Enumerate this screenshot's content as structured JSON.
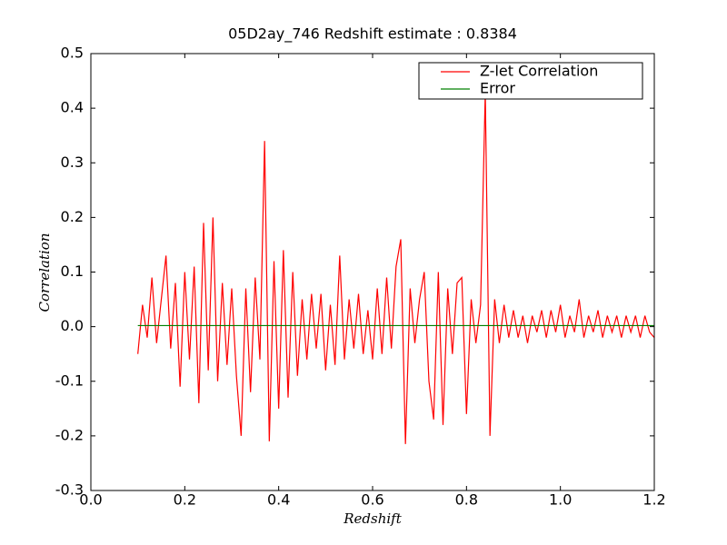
{
  "chart_data": {
    "type": "line",
    "title": "05D2ay_746 Redshift estimate : 0.8384",
    "xlabel": "Redshift",
    "ylabel": "Correlation",
    "xlim": [
      0,
      1.2
    ],
    "ylim": [
      -0.3,
      0.5
    ],
    "xticks": [
      {
        "value": 0,
        "label": "0.0"
      },
      0.2,
      0.4,
      0.6,
      0.8,
      {
        "value": 1,
        "label": "1.0"
      },
      1.2
    ],
    "yticks": [
      -0.3,
      -0.2,
      -0.1,
      {
        "value": 0,
        "label": "0.0"
      },
      0.1,
      0.2,
      0.3,
      0.4,
      0.5
    ],
    "legend": "upper right",
    "x": [
      0.1,
      0.11,
      0.12,
      0.13,
      0.14,
      0.15,
      0.16,
      0.17,
      0.18,
      0.19,
      0.2,
      0.21,
      0.22,
      0.23,
      0.24,
      0.25,
      0.26,
      0.27,
      0.28,
      0.29,
      0.3,
      0.31,
      0.32,
      0.33,
      0.34,
      0.35,
      0.36,
      0.37,
      0.38,
      0.39,
      0.4,
      0.41,
      0.42,
      0.43,
      0.44,
      0.45,
      0.46,
      0.47,
      0.48,
      0.49,
      0.5,
      0.51,
      0.52,
      0.53,
      0.54,
      0.55,
      0.56,
      0.57,
      0.58,
      0.59,
      0.6,
      0.61,
      0.62,
      0.63,
      0.64,
      0.65,
      0.66,
      0.67,
      0.68,
      0.69,
      0.7,
      0.71,
      0.72,
      0.73,
      0.74,
      0.75,
      0.76,
      0.77,
      0.78,
      0.79,
      0.8,
      0.81,
      0.82,
      0.83,
      0.84,
      0.85,
      0.86,
      0.87,
      0.88,
      0.89,
      0.9,
      0.91,
      0.92,
      0.93,
      0.94,
      0.95,
      0.96,
      0.97,
      0.98,
      0.99,
      1.0,
      1.01,
      1.02,
      1.03,
      1.04,
      1.05,
      1.06,
      1.07,
      1.08,
      1.09,
      1.1,
      1.11,
      1.12,
      1.13,
      1.14,
      1.15,
      1.16,
      1.17,
      1.18,
      1.19,
      1.2
    ],
    "series": [
      {
        "name": "Z-let Correlation",
        "color": "#ff0000",
        "values": [
          -0.05,
          0.04,
          -0.02,
          0.09,
          -0.03,
          0.05,
          0.13,
          -0.04,
          0.08,
          -0.11,
          0.1,
          -0.06,
          0.11,
          -0.14,
          0.19,
          -0.08,
          0.2,
          -0.1,
          0.08,
          -0.07,
          0.07,
          -0.09,
          -0.2,
          0.07,
          -0.12,
          0.09,
          -0.06,
          0.34,
          -0.21,
          0.12,
          -0.15,
          0.14,
          -0.13,
          0.1,
          -0.09,
          0.05,
          -0.06,
          0.06,
          -0.04,
          0.06,
          -0.08,
          0.04,
          -0.07,
          0.13,
          -0.06,
          0.05,
          -0.04,
          0.06,
          -0.05,
          0.03,
          -0.06,
          0.07,
          -0.05,
          0.09,
          -0.04,
          0.11,
          0.16,
          -0.215,
          0.07,
          -0.03,
          0.05,
          0.1,
          -0.1,
          -0.17,
          0.1,
          -0.18,
          0.07,
          -0.05,
          0.08,
          0.09,
          -0.16,
          0.05,
          -0.03,
          0.04,
          0.43,
          -0.2,
          0.05,
          -0.03,
          0.04,
          -0.02,
          0.03,
          -0.02,
          0.02,
          -0.03,
          0.02,
          -0.01,
          0.03,
          -0.02,
          0.03,
          -0.01,
          0.04,
          -0.02,
          0.02,
          -0.01,
          0.05,
          -0.02,
          0.02,
          -0.01,
          0.03,
          -0.02,
          0.02,
          -0.01,
          0.02,
          -0.02,
          0.02,
          -0.01,
          0.02,
          -0.02,
          0.02,
          -0.01,
          -0.02
        ]
      },
      {
        "name": "Error",
        "color": "#008000",
        "values": [
          0.002,
          0.002,
          0.002,
          0.002,
          0.002,
          0.002,
          0.002,
          0.002,
          0.002,
          0.002,
          0.002,
          0.002,
          0.002,
          0.002,
          0.002,
          0.002,
          0.002,
          0.002,
          0.002,
          0.002,
          0.002,
          0.002,
          0.002,
          0.002,
          0.002,
          0.002,
          0.002,
          0.002,
          0.002,
          0.002,
          0.002,
          0.002,
          0.002,
          0.002,
          0.002,
          0.002,
          0.002,
          0.002,
          0.002,
          0.002,
          0.002,
          0.002,
          0.002,
          0.002,
          0.002,
          0.002,
          0.002,
          0.002,
          0.002,
          0.002,
          0.002,
          0.002,
          0.002,
          0.002,
          0.002,
          0.002,
          0.002,
          0.002,
          0.002,
          0.002,
          0.002,
          0.002,
          0.002,
          0.002,
          0.002,
          0.002,
          0.002,
          0.002,
          0.002,
          0.002,
          0.002,
          0.002,
          0.002,
          0.002,
          0.002,
          0.002,
          0.002,
          0.002,
          0.002,
          0.002,
          0.002,
          0.002,
          0.002,
          0.002,
          0.002,
          0.002,
          0.002,
          0.002,
          0.002,
          0.002,
          0.002,
          0.002,
          0.002,
          0.002,
          0.002,
          0.002,
          0.002,
          0.002,
          0.002,
          0.002,
          0.002,
          0.002,
          0.002,
          0.002,
          0.002,
          0.002,
          0.002,
          0.002,
          0.002,
          0.002,
          0.002
        ]
      }
    ]
  }
}
